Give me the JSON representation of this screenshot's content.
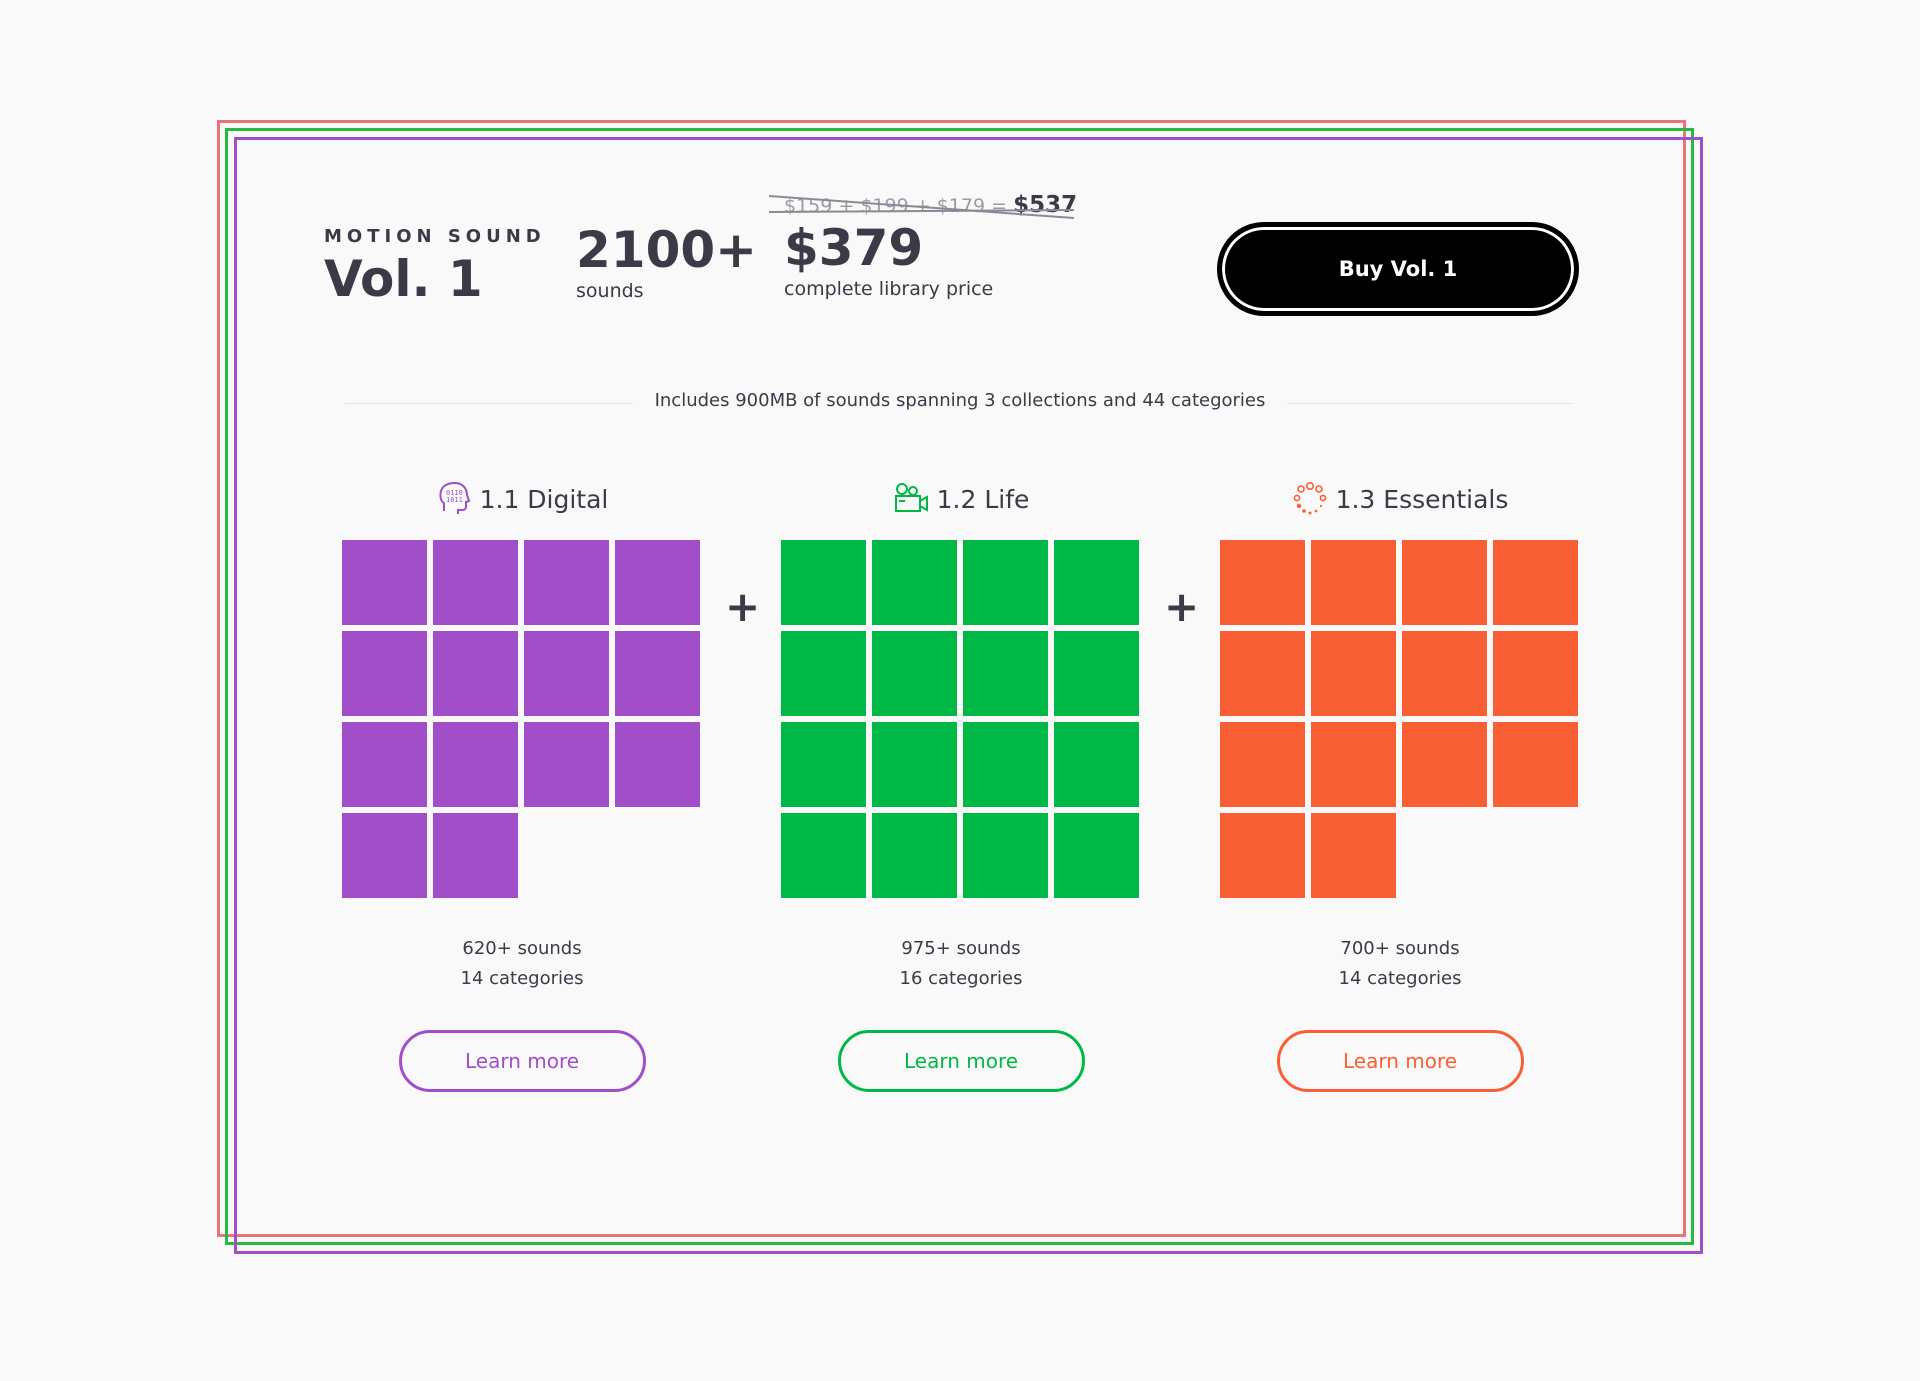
{
  "colors": {
    "frame_red": "#e8757a",
    "frame_green": "#27ba43",
    "frame_purple": "#a14fc8",
    "digital": "#a14fc8",
    "life": "#00b845",
    "essentials": "#f95f34"
  },
  "header": {
    "brand": "MOTION SOUND",
    "volume": "Vol. 1",
    "sounds_count": "2100+",
    "sounds_label": "sounds",
    "old_price_parts": "$159 + $199 + $179 =",
    "old_price_total": "$537",
    "price": "$379",
    "price_label": "complete library price",
    "buy_label": "Buy Vol. 1"
  },
  "includes_text": "Includes 900MB of sounds spanning 3 collections and 44 categories",
  "plus_sign": "+",
  "collections": [
    {
      "title": "1.1 Digital",
      "icon": "digital-head-icon",
      "tiles": 14,
      "sounds": "620+ sounds",
      "categories": "14 categories",
      "button": "Learn more"
    },
    {
      "title": "1.2 Life",
      "icon": "camera-icon",
      "tiles": 16,
      "sounds": "975+ sounds",
      "categories": "16 categories",
      "button": "Learn more"
    },
    {
      "title": "1.3 Essentials",
      "icon": "dots-circle-icon",
      "tiles": 14,
      "sounds": "700+ sounds",
      "categories": "14 categories",
      "button": "Learn more"
    }
  ]
}
